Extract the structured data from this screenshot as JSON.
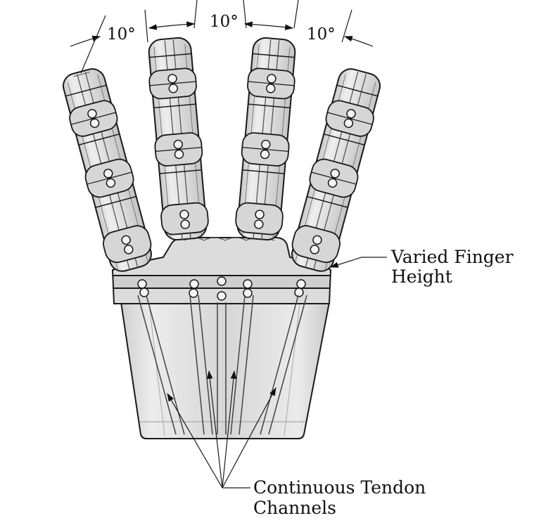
{
  "diagram": {
    "angle_labels": [
      "10°",
      "10°",
      "10°"
    ],
    "callout_finger_height": [
      "Varied Finger",
      "Height"
    ],
    "callout_tendon": [
      "Continuous Tendon",
      "Channels"
    ],
    "colors": {
      "fill_light": "#e4e4e4",
      "fill_mid": "#d2d2d2",
      "fill_dark": "#bdbdbd",
      "stroke": "#1a1a1a"
    }
  }
}
